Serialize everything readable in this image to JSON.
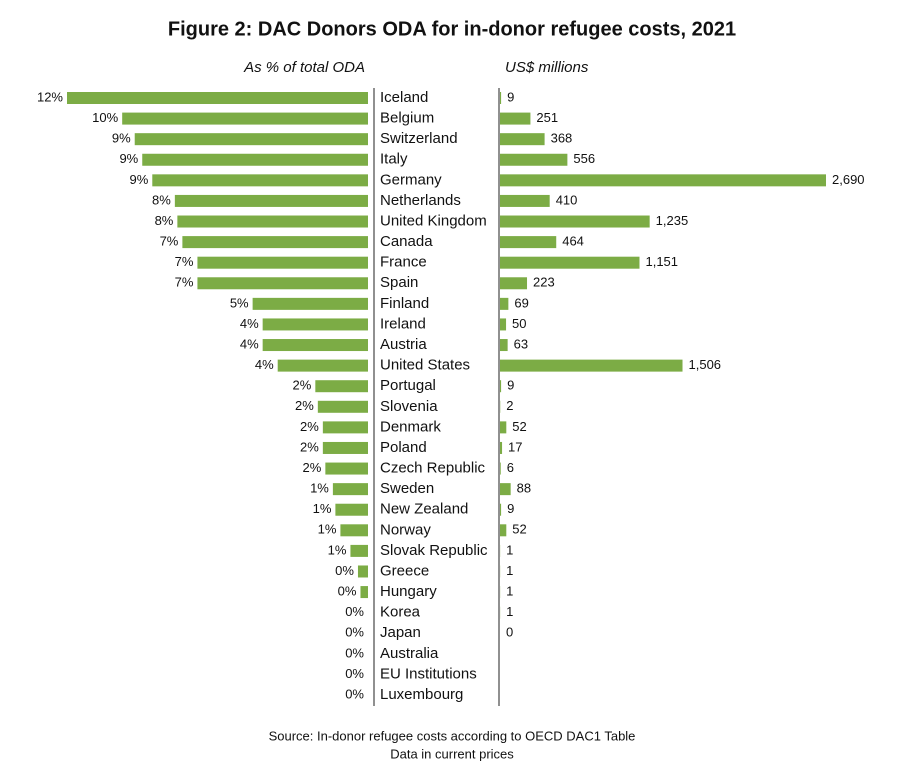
{
  "chart_data": {
    "type": "bar",
    "orientation": "horizontal",
    "title": "Figure 2: DAC Donors ODA for in-donor refugee costs, 2021",
    "categories": [
      "Iceland",
      "Belgium",
      "Switzerland",
      "Italy",
      "Germany",
      "Netherlands",
      "United Kingdom",
      "Canada",
      "France",
      "Spain",
      "Finland",
      "Ireland",
      "Austria",
      "United States",
      "Portugal",
      "Slovenia",
      "Denmark",
      "Poland",
      "Czech Republic",
      "Sweden",
      "New Zealand",
      "Norway",
      "Slovak Republic",
      "Greece",
      "Hungary",
      "Korea",
      "Japan",
      "Australia",
      "EU Institutions",
      "Luxembourg"
    ],
    "series": [
      {
        "name": "As % of total ODA",
        "color": "#7cac45",
        "values": [
          12.0,
          9.8,
          9.3,
          9.0,
          8.6,
          7.7,
          7.6,
          7.4,
          6.8,
          6.8,
          4.6,
          4.2,
          4.2,
          3.6,
          2.1,
          2.0,
          1.8,
          1.8,
          1.7,
          1.4,
          1.3,
          1.1,
          0.7,
          0.4,
          0.3,
          0,
          0,
          0,
          0,
          0
        ],
        "value_labels": [
          "12%",
          "10%",
          "9%",
          "9%",
          "9%",
          "8%",
          "8%",
          "7%",
          "7%",
          "7%",
          "5%",
          "4%",
          "4%",
          "4%",
          "2%",
          "2%",
          "2%",
          "2%",
          "2%",
          "1%",
          "1%",
          "1%",
          "1%",
          "0%",
          "0%",
          "0%",
          "0%",
          "0%",
          "0%",
          "0%"
        ]
      },
      {
        "name": "US$ millions",
        "color": "#7cac45",
        "values": [
          9,
          251,
          368,
          556,
          2690,
          410,
          1235,
          464,
          1151,
          223,
          69,
          50,
          63,
          1506,
          9,
          2,
          52,
          17,
          6,
          88,
          9,
          52,
          1,
          1,
          1,
          1,
          0,
          null,
          null,
          null
        ],
        "value_labels": [
          "9",
          "251",
          "368",
          "556",
          "2,690",
          "410",
          "1,235",
          "464",
          "1,151",
          "223",
          "69",
          "50",
          "63",
          "1,506",
          "9",
          "2",
          "52",
          "17",
          "6",
          "88",
          "9",
          "52",
          "1",
          "1",
          "1",
          "1",
          "0",
          null,
          null,
          null
        ]
      }
    ],
    "source": "Source: In-donor refugee costs according to OECD DAC1 Table",
    "note": "Data in current prices"
  }
}
